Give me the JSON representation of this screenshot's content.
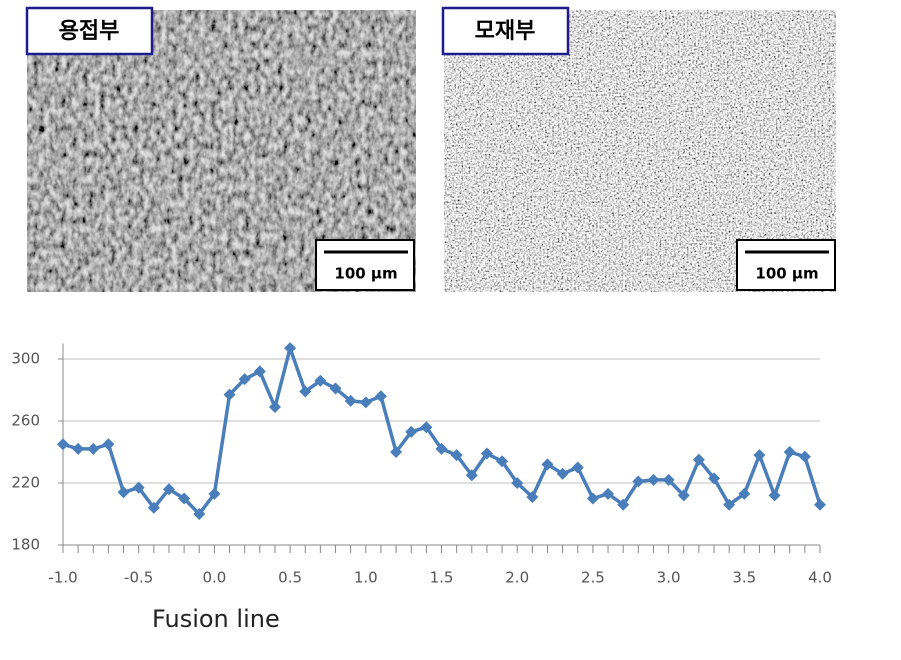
{
  "panels": [
    {
      "label": "용접부",
      "scale_bar": "100 μm"
    },
    {
      "label": "모재부",
      "scale_bar": "100 μm"
    }
  ],
  "chart_data": {
    "type": "line",
    "x_label": "Fusion line",
    "x": [
      -1.0,
      -0.9,
      -0.8,
      -0.7,
      -0.6,
      -0.5,
      -0.4,
      -0.3,
      -0.2,
      -0.1,
      0.0,
      0.1,
      0.2,
      0.3,
      0.4,
      0.5,
      0.6,
      0.7,
      0.8,
      0.9,
      1.0,
      1.1,
      1.2,
      1.3,
      1.4,
      1.5,
      1.6,
      1.7,
      1.8,
      1.9,
      2.0,
      2.1,
      2.2,
      2.3,
      2.4,
      2.5,
      2.6,
      2.7,
      2.8,
      2.9,
      3.0,
      3.1,
      3.2,
      3.3,
      3.4,
      3.5,
      3.6,
      3.7,
      3.8,
      3.9,
      4.0
    ],
    "series": [
      {
        "color": "#4a7ebb",
        "values": [
          245,
          242,
          242,
          245,
          214,
          217,
          204,
          216,
          210,
          200,
          213,
          277,
          287,
          292,
          269,
          307,
          279,
          286,
          281,
          273,
          272,
          276,
          240,
          253,
          256,
          242,
          238,
          225,
          239,
          234,
          220,
          211,
          232,
          226,
          230,
          210,
          213,
          206,
          221,
          222,
          222,
          212,
          235,
          223,
          206,
          213,
          238,
          212,
          240,
          237,
          206
        ]
      }
    ],
    "xlim": [
      -1.0,
      4.0
    ],
    "xticks": [
      {
        "value": -1.0,
        "label": "-1.0"
      },
      {
        "value": -0.5,
        "label": "-0.5"
      },
      {
        "value": 0.0,
        "label": "0.0"
      },
      {
        "value": 0.5,
        "label": "0.5"
      },
      {
        "value": 1.0,
        "label": "1.0"
      },
      {
        "value": 1.5,
        "label": "1.5"
      },
      {
        "value": 2.0,
        "label": "2.0"
      },
      {
        "value": 2.5,
        "label": "2.5"
      },
      {
        "value": 3.0,
        "label": "3.0"
      },
      {
        "value": 3.5,
        "label": "3.5"
      },
      {
        "value": 4.0,
        "label": "4.0"
      }
    ],
    "ylim": [
      180,
      310
    ],
    "yticks": [
      180,
      220,
      260,
      300
    ],
    "grid": true
  }
}
